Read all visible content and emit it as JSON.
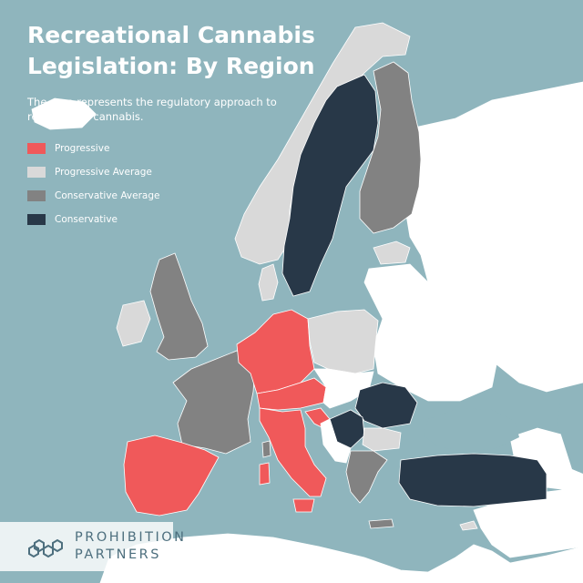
{
  "title_line1": "Recreational Cannabis",
  "title_line2": "Legislation: By Region",
  "subtitle_line1": "The map represents the regulatory approach to",
  "subtitle_line2": "recreational cannabis.",
  "colors": {
    "sea": "#8fb5bd",
    "progressive": "#f0595a",
    "progressive_average": "#d9d9d9",
    "conservative_average": "#828282",
    "conservative": "#283848",
    "unclassified": "#ffffff"
  },
  "legend": [
    {
      "label": "Progressive",
      "color": "#f0595a"
    },
    {
      "label": "Progressive Average",
      "color": "#d9d9d9"
    },
    {
      "label": "Conservative Average",
      "color": "#828282"
    },
    {
      "label": "Conservative",
      "color": "#283848"
    }
  ],
  "logo": {
    "icon": "hexagon-cluster-icon",
    "line1": "PROHIBITION",
    "line2": "PARTNERS"
  }
}
